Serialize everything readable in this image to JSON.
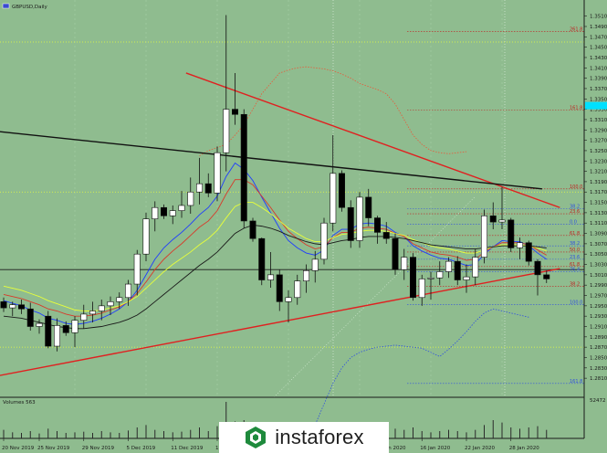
{
  "header": {
    "symbol_label": "GBPUSD,Daily"
  },
  "volume_panel": {
    "label": "Volumes 563",
    "scale_label": "52472"
  },
  "watermark": {
    "text": "instaforex"
  },
  "colors": {
    "background": "#8fbc8f",
    "bull_candle": "#ffffff",
    "bear_candle": "#000000",
    "trendline": "#e02020",
    "black_line": "#111111",
    "ma_blue": "#1e3cff",
    "ma_yellow": "#e8ff3a",
    "ma_red": "#d83a2a",
    "ma_black": "#1a1a1a",
    "bollinger": "#e85a3a",
    "fib_blue": "#3050e0",
    "fib_red": "#c02020",
    "price_highlight": "#00e0ff",
    "level_yellow": "#e8ff3a"
  },
  "chart_data": {
    "type": "candlestick",
    "symbol": "GBPUSD",
    "timeframe": "Daily",
    "ylim": [
      1.2782,
      1.352
    ],
    "x_tick_labels": [
      "20 Nov 2019",
      "25 Nov 2019",
      "29 Nov 2019",
      "5 Dec 2019",
      "11 Dec 2019",
      "17",
      "10 Jan 2020",
      "16 Jan 2020",
      "22 Jan 2020",
      "28 Jan 2020"
    ],
    "y_tick_labels": [
      "1.3510",
      "1.3490",
      "1.3470",
      "1.3450",
      "1.3430",
      "1.3410",
      "1.3390",
      "1.3370",
      "1.3350",
      "1.3330",
      "1.3310",
      "1.3290",
      "1.3270",
      "1.3250",
      "1.3230",
      "1.3210",
      "1.3190",
      "1.3170",
      "1.3150",
      "1.3130",
      "1.3110",
      "1.3090",
      "1.3070",
      "1.3050",
      "1.3030",
      "1.3010",
      "1.2990",
      "1.2970",
      "1.2950",
      "1.2930",
      "1.2910",
      "1.2890",
      "1.2870",
      "1.2850",
      "1.2830",
      "1.2810"
    ],
    "y_ticks": [
      1.351,
      1.349,
      1.347,
      1.345,
      1.343,
      1.341,
      1.339,
      1.337,
      1.335,
      1.333,
      1.331,
      1.329,
      1.327,
      1.325,
      1.323,
      1.321,
      1.319,
      1.317,
      1.315,
      1.313,
      1.311,
      1.309,
      1.307,
      1.305,
      1.303,
      1.301,
      1.299,
      1.297,
      1.295,
      1.293,
      1.291,
      1.289,
      1.287,
      1.285,
      1.283,
      1.281
    ],
    "candles": [
      {
        "o": 1.2958,
        "h": 1.2966,
        "l": 1.2938,
        "c": 1.2946
      },
      {
        "o": 1.2946,
        "h": 1.2958,
        "l": 1.293,
        "c": 1.2952
      },
      {
        "o": 1.2952,
        "h": 1.2962,
        "l": 1.2934,
        "c": 1.2944
      },
      {
        "o": 1.2944,
        "h": 1.2956,
        "l": 1.2902,
        "c": 1.291
      },
      {
        "o": 1.291,
        "h": 1.2924,
        "l": 1.2896,
        "c": 1.2916
      },
      {
        "o": 1.293,
        "h": 1.294,
        "l": 1.2868,
        "c": 1.2872
      },
      {
        "o": 1.2872,
        "h": 1.2926,
        "l": 1.2862,
        "c": 1.2912
      },
      {
        "o": 1.2912,
        "h": 1.292,
        "l": 1.2892,
        "c": 1.2898
      },
      {
        "o": 1.2898,
        "h": 1.293,
        "l": 1.287,
        "c": 1.2922
      },
      {
        "o": 1.2922,
        "h": 1.2952,
        "l": 1.2906,
        "c": 1.2934
      },
      {
        "o": 1.2934,
        "h": 1.2958,
        "l": 1.2918,
        "c": 1.294
      },
      {
        "o": 1.294,
        "h": 1.2962,
        "l": 1.2922,
        "c": 1.295
      },
      {
        "o": 1.295,
        "h": 1.2968,
        "l": 1.2932,
        "c": 1.2958
      },
      {
        "o": 1.2958,
        "h": 1.2976,
        "l": 1.2944,
        "c": 1.2966
      },
      {
        "o": 1.2966,
        "h": 1.3,
        "l": 1.295,
        "c": 1.2992
      },
      {
        "o": 1.2992,
        "h": 1.3058,
        "l": 1.297,
        "c": 1.305
      },
      {
        "o": 1.305,
        "h": 1.313,
        "l": 1.3036,
        "c": 1.3118
      },
      {
        "o": 1.3118,
        "h": 1.3152,
        "l": 1.3094,
        "c": 1.314
      },
      {
        "o": 1.314,
        "h": 1.3146,
        "l": 1.3118,
        "c": 1.3124
      },
      {
        "o": 1.3124,
        "h": 1.3144,
        "l": 1.3108,
        "c": 1.3134
      },
      {
        "o": 1.3134,
        "h": 1.3172,
        "l": 1.312,
        "c": 1.3144
      },
      {
        "o": 1.3144,
        "h": 1.3198,
        "l": 1.3128,
        "c": 1.317
      },
      {
        "o": 1.317,
        "h": 1.3236,
        "l": 1.3146,
        "c": 1.3186
      },
      {
        "o": 1.3186,
        "h": 1.3206,
        "l": 1.316,
        "c": 1.3168
      },
      {
        "o": 1.3168,
        "h": 1.3258,
        "l": 1.3152,
        "c": 1.3246
      },
      {
        "o": 1.3246,
        "h": 1.3512,
        "l": 1.321,
        "c": 1.333
      },
      {
        "o": 1.333,
        "h": 1.34,
        "l": 1.33,
        "c": 1.332
      },
      {
        "o": 1.332,
        "h": 1.333,
        "l": 1.31,
        "c": 1.3114
      },
      {
        "o": 1.3114,
        "h": 1.312,
        "l": 1.3074,
        "c": 1.308
      },
      {
        "o": 1.308,
        "h": 1.3082,
        "l": 1.299,
        "c": 1.3
      },
      {
        "o": 1.3,
        "h": 1.3054,
        "l": 1.2985,
        "c": 1.301
      },
      {
        "o": 1.301,
        "h": 1.302,
        "l": 1.294,
        "c": 1.2958
      },
      {
        "o": 1.2958,
        "h": 1.298,
        "l": 1.2918,
        "c": 1.2966
      },
      {
        "o": 1.2966,
        "h": 1.301,
        "l": 1.2952,
        "c": 1.2998
      },
      {
        "o": 1.2998,
        "h": 1.303,
        "l": 1.2975,
        "c": 1.3018
      },
      {
        "o": 1.3018,
        "h": 1.3056,
        "l": 1.2995,
        "c": 1.304
      },
      {
        "o": 1.304,
        "h": 1.312,
        "l": 1.303,
        "c": 1.311
      },
      {
        "o": 1.311,
        "h": 1.328,
        "l": 1.3094,
        "c": 1.3206
      },
      {
        "o": 1.3206,
        "h": 1.3212,
        "l": 1.3132,
        "c": 1.314
      },
      {
        "o": 1.314,
        "h": 1.3154,
        "l": 1.3062,
        "c": 1.3076
      },
      {
        "o": 1.3076,
        "h": 1.317,
        "l": 1.3062,
        "c": 1.316
      },
      {
        "o": 1.316,
        "h": 1.3176,
        "l": 1.3104,
        "c": 1.312
      },
      {
        "o": 1.312,
        "h": 1.3124,
        "l": 1.307,
        "c": 1.3092
      },
      {
        "o": 1.3092,
        "h": 1.3112,
        "l": 1.307,
        "c": 1.308
      },
      {
        "o": 1.308,
        "h": 1.309,
        "l": 1.301,
        "c": 1.302
      },
      {
        "o": 1.302,
        "h": 1.306,
        "l": 1.3,
        "c": 1.3044
      },
      {
        "o": 1.3044,
        "h": 1.3052,
        "l": 1.296,
        "c": 1.2966
      },
      {
        "o": 1.2966,
        "h": 1.301,
        "l": 1.295,
        "c": 1.3002
      },
      {
        "o": 1.3002,
        "h": 1.3016,
        "l": 1.2962,
        "c": 1.3004
      },
      {
        "o": 1.3004,
        "h": 1.3036,
        "l": 1.299,
        "c": 1.3016
      },
      {
        "o": 1.3016,
        "h": 1.3044,
        "l": 1.3004,
        "c": 1.3036
      },
      {
        "o": 1.3036,
        "h": 1.3046,
        "l": 1.299,
        "c": 1.3
      },
      {
        "o": 1.3,
        "h": 1.303,
        "l": 1.2975,
        "c": 1.3006
      },
      {
        "o": 1.3006,
        "h": 1.306,
        "l": 1.299,
        "c": 1.3044
      },
      {
        "o": 1.3044,
        "h": 1.3136,
        "l": 1.3032,
        "c": 1.3124
      },
      {
        "o": 1.3124,
        "h": 1.315,
        "l": 1.3098,
        "c": 1.3112
      },
      {
        "o": 1.3112,
        "h": 1.318,
        "l": 1.3098,
        "c": 1.3116
      },
      {
        "o": 1.3116,
        "h": 1.312,
        "l": 1.3054,
        "c": 1.3062
      },
      {
        "o": 1.3062,
        "h": 1.3082,
        "l": 1.304,
        "c": 1.3072
      },
      {
        "o": 1.3072,
        "h": 1.3076,
        "l": 1.3028,
        "c": 1.3036
      },
      {
        "o": 1.3036,
        "h": 1.304,
        "l": 1.297,
        "c": 1.301
      },
      {
        "o": 1.301,
        "h": 1.3018,
        "l": 1.2994,
        "c": 1.3002
      }
    ],
    "moving_averages": [
      {
        "color": "#1e3cff",
        "values": [
          1.296,
          1.2955,
          1.295,
          1.2942,
          1.2936,
          1.2926,
          1.2922,
          1.2916,
          1.2914,
          1.2916,
          1.292,
          1.2926,
          1.2934,
          1.2944,
          1.2958,
          1.298,
          1.301,
          1.304,
          1.3062,
          1.3078,
          1.3092,
          1.3108,
          1.3126,
          1.314,
          1.3162,
          1.32,
          1.3226,
          1.3214,
          1.3192,
          1.316,
          1.313,
          1.31,
          1.3076,
          1.3062,
          1.3052,
          1.3048,
          1.3058,
          1.3086,
          1.3098,
          1.3098,
          1.3108,
          1.311,
          1.3108,
          1.3104,
          1.3092,
          1.3084,
          1.3066,
          1.3056,
          1.3048,
          1.3042,
          1.304,
          1.3034,
          1.3028,
          1.303,
          1.305,
          1.3064,
          1.3076,
          1.3074,
          1.3074,
          1.3066,
          1.3052,
          1.304
        ]
      },
      {
        "color": "#d83a2a",
        "values": [
          1.2972,
          1.2968,
          1.2964,
          1.2958,
          1.2952,
          1.2944,
          1.294,
          1.2934,
          1.293,
          1.293,
          1.2932,
          1.2936,
          1.2942,
          1.2948,
          1.2958,
          1.2974,
          1.2996,
          1.302,
          1.304,
          1.3056,
          1.307,
          1.3086,
          1.3102,
          1.3114,
          1.3134,
          1.3166,
          1.3194,
          1.3194,
          1.3184,
          1.3162,
          1.314,
          1.3116,
          1.3094,
          1.308,
          1.3068,
          1.306,
          1.3064,
          1.3082,
          1.3092,
          1.3092,
          1.31,
          1.3102,
          1.31,
          1.3098,
          1.309,
          1.3084,
          1.307,
          1.3062,
          1.3054,
          1.305,
          1.3048,
          1.3044,
          1.3038,
          1.304,
          1.3054,
          1.3064,
          1.3072,
          1.3072,
          1.3072,
          1.3068,
          1.3058,
          1.3048
        ]
      },
      {
        "color": "#e8ff3a",
        "values": [
          1.2988,
          1.2984,
          1.298,
          1.2974,
          1.2968,
          1.296,
          1.2954,
          1.2948,
          1.2942,
          1.294,
          1.294,
          1.2942,
          1.2946,
          1.295,
          1.2958,
          1.2968,
          1.2984,
          1.3,
          1.3016,
          1.303,
          1.3042,
          1.3054,
          1.3068,
          1.308,
          1.3096,
          1.312,
          1.3142,
          1.315,
          1.315,
          1.314,
          1.3128,
          1.3114,
          1.31,
          1.309,
          1.308,
          1.3074,
          1.3074,
          1.3082,
          1.3088,
          1.309,
          1.3094,
          1.3096,
          1.3096,
          1.3094,
          1.309,
          1.3086,
          1.3078,
          1.3072,
          1.3066,
          1.3062,
          1.306,
          1.3056,
          1.3052,
          1.3052,
          1.3058,
          1.3064,
          1.3068,
          1.3068,
          1.3068,
          1.3066,
          1.3062,
          1.3056
        ]
      },
      {
        "color": "#1a1a1a",
        "values": [
          1.293,
          1.2928,
          1.2926,
          1.2922,
          1.2918,
          1.2914,
          1.291,
          1.2908,
          1.2906,
          1.2906,
          1.2908,
          1.291,
          1.2914,
          1.2918,
          1.2924,
          1.2932,
          1.2944,
          1.2958,
          1.2972,
          1.2986,
          1.3,
          1.3014,
          1.3028,
          1.304,
          1.3054,
          1.3072,
          1.309,
          1.31,
          1.3106,
          1.3104,
          1.31,
          1.3094,
          1.3086,
          1.308,
          1.3074,
          1.307,
          1.3068,
          1.3072,
          1.3076,
          1.3078,
          1.3082,
          1.3084,
          1.3084,
          1.3084,
          1.3082,
          1.308,
          1.3076,
          1.3072,
          1.3068,
          1.3066,
          1.3064,
          1.3062,
          1.306,
          1.306,
          1.3062,
          1.3064,
          1.3066,
          1.3066,
          1.3066,
          1.3066,
          1.3064,
          1.3062
        ]
      }
    ],
    "bollinger_upper": [
      1.324,
      1.325,
      1.3256,
      1.3262,
      1.328,
      1.33,
      1.333,
      1.336,
      1.338,
      1.34,
      1.3406,
      1.341,
      1.3412,
      1.341,
      1.3408,
      1.3404,
      1.3398,
      1.339,
      1.338,
      1.3374,
      1.3368,
      1.336,
      1.334,
      1.331,
      1.328,
      1.3262,
      1.325,
      1.3246,
      1.3244,
      1.3246,
      1.3248
    ],
    "bollinger_lower": [
      1.265,
      1.268,
      1.272,
      1.276,
      1.28,
      1.283,
      1.285,
      1.286,
      1.2866,
      1.287,
      1.2872,
      1.2874,
      1.2872,
      1.287,
      1.2868,
      1.286,
      1.2852,
      1.2866,
      1.2882,
      1.29,
      1.292,
      1.2936,
      1.2944,
      1.294,
      1.2936,
      1.2932,
      1.2928
    ],
    "trendlines": [
      {
        "color": "#e02020",
        "from": [
          -4.5,
          1.2802
        ],
        "to": [
          62.5,
          1.3022
        ]
      },
      {
        "color": "#e02020",
        "from": [
          20.5,
          1.34
        ],
        "to": [
          62.5,
          1.314
        ]
      },
      {
        "color": "#111111",
        "from": [
          -4.5,
          1.3294
        ],
        "to": [
          60.5,
          1.3176
        ]
      }
    ],
    "horizontal_levels": [
      {
        "price": 1.302,
        "color": "#1a1a1a",
        "style": "solid"
      },
      {
        "price": 1.317,
        "color": "#e8ff3a",
        "style": "dotted"
      },
      {
        "price": 1.287,
        "color": "#e8ff3a",
        "style": "dotted"
      },
      {
        "price": 1.346,
        "color": "#e8ff3a",
        "style": "dotted"
      }
    ],
    "fib_levels": [
      {
        "label": "100.0",
        "price": 1.3176,
        "color": "#c02020"
      },
      {
        "label": "38.2",
        "price": 1.3138,
        "color": "#3050e0"
      },
      {
        "label": "23.6",
        "price": 1.3128,
        "color": "#c02020"
      },
      {
        "label": "0.0",
        "price": 1.3108,
        "color": "#3050e0"
      },
      {
        "label": "61.8",
        "price": 1.3086,
        "color": "#c02020"
      },
      {
        "label": "38.2",
        "price": 1.3066,
        "color": "#3050e0"
      },
      {
        "label": "50.0",
        "price": 1.3054,
        "color": "#c02020"
      },
      {
        "label": "23.6",
        "price": 1.304,
        "color": "#3050e0"
      },
      {
        "label": "61.8",
        "price": 1.3026,
        "color": "#c02020"
      },
      {
        "label": "76.4",
        "price": 1.3016,
        "color": "#3050e0"
      },
      {
        "label": "100.0",
        "price": 1.2952,
        "color": "#3050e0"
      },
      {
        "label": "161.8",
        "price": 1.28,
        "color": "#3050e0"
      },
      {
        "label": "38.2",
        "price": 1.2988,
        "color": "#c02020"
      },
      {
        "label": "261.8",
        "price": 1.348,
        "color": "#c02020"
      },
      {
        "label": "161.8",
        "price": 1.3328,
        "color": "#c02020"
      }
    ],
    "extra_price_labels": [
      {
        "label": "76.4",
        "price": 1.2999,
        "color": "#c02020"
      },
      {
        "label": "38.2",
        "price": 1.2988,
        "color": "#c02020"
      }
    ],
    "current_price": 1.3337,
    "volumes": [
      14,
      10,
      9,
      12,
      8,
      16,
      12,
      9,
      10,
      11,
      9,
      12,
      10,
      9,
      13,
      18,
      22,
      14,
      12,
      10,
      11,
      14,
      18,
      12,
      20,
      60,
      28,
      30,
      22,
      18,
      16,
      20,
      14,
      16,
      12,
      14,
      18,
      22,
      16,
      14,
      16,
      18,
      14,
      12,
      16,
      14,
      18,
      12,
      10,
      12,
      14,
      12,
      10,
      14,
      22,
      30,
      26,
      18,
      16,
      18,
      20,
      14
    ]
  }
}
